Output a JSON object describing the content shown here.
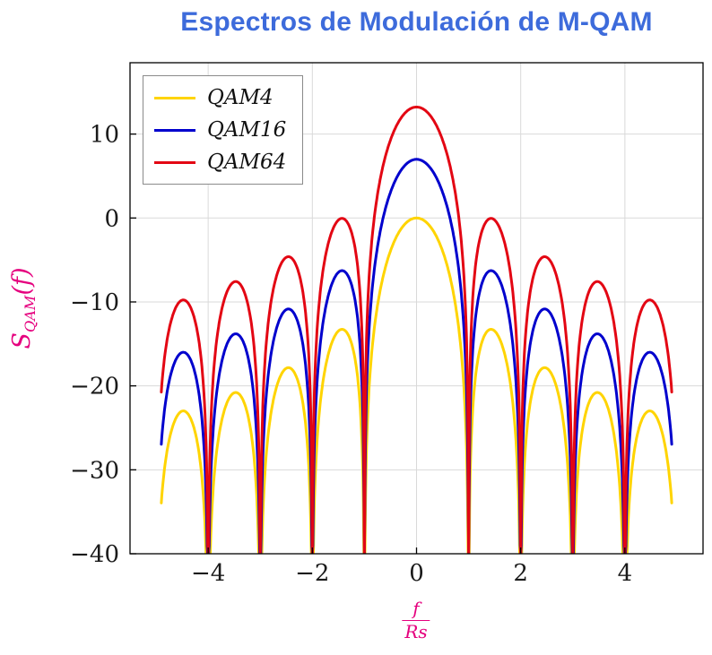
{
  "title": "Espectros de Modulación de M-QAM",
  "labels": {
    "y": {
      "main": "S",
      "sub": "QAM",
      "args": "(f)"
    },
    "x": {
      "num": "f",
      "den": "Rs"
    }
  },
  "colors": {
    "title": "#3D6BDB",
    "axis_label": "#E5007E",
    "grid": "#D9D9D9",
    "frame": "#000000",
    "tick_text": "#1A1A1A"
  },
  "chart_data": {
    "type": "line",
    "title": "Espectros de Modulación de M-QAM",
    "xlabel": "f/Rs",
    "ylabel": "S_QAM(f)",
    "xlim": [
      -5.5,
      5.5
    ],
    "ylim": [
      -40,
      18.5
    ],
    "x_ticks": [
      -4,
      -2,
      0,
      2,
      4
    ],
    "y_ticks": [
      10,
      0,
      -10,
      -20,
      -30,
      -40
    ],
    "grid": true,
    "legend_position": "top-left",
    "x_plot_range": [
      -4.9,
      4.9
    ],
    "sample_step": 0.01,
    "clip_min_db": -40,
    "formula": "S(f) = peak_db + 20*log10(|sin(pi*f)/(pi*f)|), nulls at integer f/Rs",
    "series": [
      {
        "name": "QAM4",
        "color": "#FFD400",
        "peak_db": 0,
        "first_sidelobe_db": -13.3
      },
      {
        "name": "QAM16",
        "color": "#0000CD",
        "peak_db": 6.99,
        "first_sidelobe_db": -6.3
      },
      {
        "name": "QAM64",
        "color": "#E30613",
        "peak_db": 13.22,
        "first_sidelobe_db": -0.1
      }
    ]
  }
}
